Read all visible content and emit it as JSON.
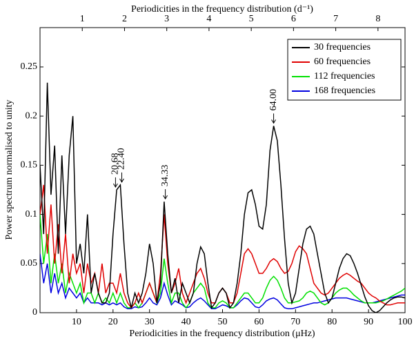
{
  "chart_data": {
    "type": "line",
    "xlabel": "Periodicities in the frequency distribution (μHz)",
    "x2label": "Periodicities in the frequency distribution (d⁻¹)",
    "ylabel": "Power spectrum normalised to unity",
    "xlim": [
      0,
      100
    ],
    "xticks": [
      10,
      20,
      30,
      40,
      50,
      60,
      70,
      80,
      90,
      100
    ],
    "x2lim": [
      0,
      8.64
    ],
    "x2ticks": [
      1,
      2,
      3,
      4,
      5,
      6,
      7,
      8
    ],
    "ylim": [
      0,
      0.29
    ],
    "yticks": [
      0,
      0.05,
      0.1,
      0.15,
      0.2,
      0.25
    ],
    "legend": "upper right",
    "x": [
      0,
      1,
      2,
      3,
      4,
      5,
      6,
      7,
      8,
      9,
      10,
      11,
      12,
      13,
      14,
      15,
      16,
      17,
      18,
      19,
      20,
      21,
      22,
      23,
      24,
      25,
      26,
      27,
      28,
      29,
      30,
      31,
      32,
      33,
      34,
      35,
      36,
      37,
      38,
      39,
      40,
      41,
      42,
      43,
      44,
      45,
      46,
      47,
      48,
      49,
      50,
      51,
      52,
      53,
      54,
      55,
      56,
      57,
      58,
      59,
      60,
      61,
      62,
      63,
      64,
      65,
      66,
      67,
      68,
      69,
      70,
      71,
      72,
      73,
      74,
      75,
      76,
      77,
      78,
      79,
      80,
      81,
      82,
      83,
      84,
      85,
      86,
      87,
      88,
      89,
      90,
      91,
      92,
      93,
      94,
      95,
      96,
      97,
      98,
      99,
      100
    ],
    "series": [
      {
        "name": "30 frequencies",
        "color": "#000000",
        "values": [
          0.15,
          0.08,
          0.234,
          0.12,
          0.17,
          0.06,
          0.16,
          0.08,
          0.16,
          0.2,
          0.05,
          0.07,
          0.04,
          0.1,
          0.02,
          0.04,
          0.02,
          0.01,
          0.01,
          0.02,
          0.08,
          0.125,
          0.13,
          0.07,
          0.02,
          0.005,
          0.02,
          0.01,
          0.02,
          0.04,
          0.07,
          0.05,
          0.01,
          0.03,
          0.113,
          0.06,
          0.02,
          0.035,
          0.01,
          0.03,
          0.02,
          0.01,
          0.02,
          0.05,
          0.067,
          0.06,
          0.03,
          0.005,
          0.01,
          0.02,
          0.025,
          0.02,
          0.005,
          0.01,
          0.03,
          0.06,
          0.1,
          0.122,
          0.125,
          0.11,
          0.088,
          0.085,
          0.11,
          0.165,
          0.19,
          0.175,
          0.13,
          0.075,
          0.03,
          0.01,
          0.02,
          0.045,
          0.07,
          0.085,
          0.088,
          0.08,
          0.06,
          0.04,
          0.02,
          0.01,
          0.015,
          0.03,
          0.045,
          0.055,
          0.06,
          0.058,
          0.05,
          0.04,
          0.028,
          0.016,
          0.007,
          0.002,
          0.0,
          0.002,
          0.006,
          0.01,
          0.013,
          0.015,
          0.016,
          0.016,
          0.015
        ]
      },
      {
        "name": "60 frequencies",
        "color": "#e00000",
        "values": [
          0.1,
          0.13,
          0.06,
          0.11,
          0.05,
          0.09,
          0.04,
          0.08,
          0.03,
          0.06,
          0.04,
          0.05,
          0.02,
          0.05,
          0.03,
          0.04,
          0.02,
          0.05,
          0.02,
          0.03,
          0.03,
          0.02,
          0.04,
          0.02,
          0.01,
          0.005,
          0.01,
          0.02,
          0.01,
          0.02,
          0.03,
          0.02,
          0.01,
          0.04,
          0.1,
          0.05,
          0.02,
          0.03,
          0.045,
          0.02,
          0.01,
          0.02,
          0.03,
          0.04,
          0.045,
          0.035,
          0.02,
          0.01,
          0.01,
          0.02,
          0.025,
          0.02,
          0.01,
          0.01,
          0.02,
          0.04,
          0.06,
          0.065,
          0.06,
          0.05,
          0.04,
          0.04,
          0.045,
          0.052,
          0.055,
          0.052,
          0.045,
          0.04,
          0.042,
          0.05,
          0.062,
          0.068,
          0.065,
          0.06,
          0.045,
          0.03,
          0.025,
          0.02,
          0.018,
          0.02,
          0.025,
          0.03,
          0.035,
          0.038,
          0.04,
          0.038,
          0.035,
          0.032,
          0.03,
          0.025,
          0.02,
          0.017,
          0.015,
          0.012,
          0.01,
          0.008,
          0.008,
          0.009,
          0.01,
          0.01,
          0.01
        ]
      },
      {
        "name": "112 frequencies",
        "color": "#00e000",
        "values": [
          0.1,
          0.05,
          0.08,
          0.03,
          0.06,
          0.03,
          0.05,
          0.02,
          0.04,
          0.03,
          0.02,
          0.03,
          0.01,
          0.02,
          0.02,
          0.01,
          0.02,
          0.01,
          0.015,
          0.01,
          0.02,
          0.01,
          0.02,
          0.01,
          0.005,
          0.005,
          0.01,
          0.005,
          0.01,
          0.02,
          0.03,
          0.02,
          0.01,
          0.02,
          0.055,
          0.03,
          0.01,
          0.02,
          0.02,
          0.01,
          0.005,
          0.01,
          0.02,
          0.025,
          0.03,
          0.025,
          0.01,
          0.005,
          0.005,
          0.01,
          0.012,
          0.01,
          0.005,
          0.005,
          0.01,
          0.015,
          0.02,
          0.02,
          0.015,
          0.01,
          0.01,
          0.015,
          0.025,
          0.033,
          0.037,
          0.033,
          0.025,
          0.015,
          0.01,
          0.01,
          0.011,
          0.012,
          0.015,
          0.02,
          0.022,
          0.02,
          0.015,
          0.01,
          0.008,
          0.01,
          0.015,
          0.02,
          0.023,
          0.025,
          0.025,
          0.022,
          0.018,
          0.015,
          0.012,
          0.01,
          0.01,
          0.01,
          0.01,
          0.011,
          0.012,
          0.014,
          0.016,
          0.018,
          0.02,
          0.022,
          0.025
        ]
      },
      {
        "name": "168 frequencies",
        "color": "#0000e0",
        "values": [
          0.06,
          0.03,
          0.05,
          0.02,
          0.04,
          0.02,
          0.03,
          0.015,
          0.025,
          0.02,
          0.015,
          0.02,
          0.01,
          0.015,
          0.01,
          0.01,
          0.01,
          0.008,
          0.01,
          0.008,
          0.01,
          0.008,
          0.01,
          0.006,
          0.004,
          0.004,
          0.006,
          0.005,
          0.006,
          0.01,
          0.015,
          0.01,
          0.008,
          0.015,
          0.03,
          0.018,
          0.008,
          0.012,
          0.01,
          0.008,
          0.005,
          0.006,
          0.01,
          0.013,
          0.015,
          0.012,
          0.008,
          0.004,
          0.004,
          0.006,
          0.008,
          0.007,
          0.005,
          0.005,
          0.008,
          0.012,
          0.015,
          0.014,
          0.01,
          0.006,
          0.005,
          0.008,
          0.012,
          0.014,
          0.015,
          0.013,
          0.009,
          0.005,
          0.004,
          0.004,
          0.005,
          0.006,
          0.007,
          0.008,
          0.009,
          0.01,
          0.01,
          0.011,
          0.012,
          0.013,
          0.014,
          0.015,
          0.015,
          0.015,
          0.015,
          0.014,
          0.013,
          0.012,
          0.011,
          0.01,
          0.01,
          0.01,
          0.011,
          0.012,
          0.013,
          0.014,
          0.015,
          0.016,
          0.017,
          0.018,
          0.018
        ]
      }
    ],
    "annotations": [
      {
        "text": "20.68",
        "x": 20.68,
        "y": 0.125
      },
      {
        "text": "22.40",
        "x": 22.4,
        "y": 0.13
      },
      {
        "text": "34.33",
        "x": 34.33,
        "y": 0.113
      },
      {
        "text": "64.00",
        "x": 64,
        "y": 0.19
      }
    ]
  }
}
